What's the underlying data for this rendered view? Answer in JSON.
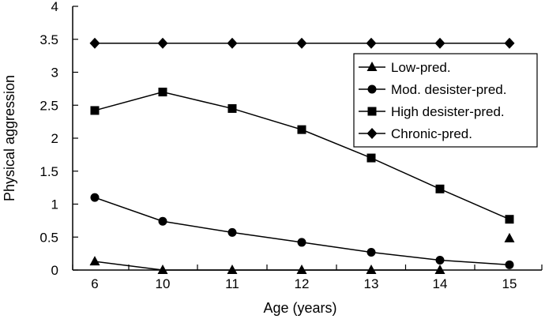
{
  "chart_data": {
    "type": "line",
    "title": "",
    "xlabel": "Age (years)",
    "ylabel": "Physical aggression",
    "categories": [
      "6",
      "10",
      "11",
      "12",
      "13",
      "14",
      "15"
    ],
    "yticks": [
      "0",
      "0.5",
      "1",
      "1.5",
      "2",
      "2.5",
      "3",
      "3.5",
      "4"
    ],
    "ylim": [
      0,
      4
    ],
    "grid": false,
    "legend_position": "right",
    "series": [
      {
        "name": "Low-pred.",
        "marker": "triangle",
        "values": [
          0.13,
          0.0,
          0.0,
          0.0,
          0.0,
          0.0,
          0.48
        ],
        "connected": [
          true,
          true,
          true,
          true,
          true,
          true,
          false
        ]
      },
      {
        "name": "Mod. desister-pred.",
        "marker": "circle",
        "values": [
          1.1,
          0.74,
          0.57,
          0.42,
          0.27,
          0.15,
          0.08
        ]
      },
      {
        "name": "High desister-pred.",
        "marker": "square",
        "values": [
          2.42,
          2.7,
          2.45,
          2.13,
          1.7,
          1.23,
          0.77
        ]
      },
      {
        "name": "Chronic-pred.",
        "marker": "diamond",
        "values": [
          3.44,
          3.44,
          3.44,
          3.44,
          3.44,
          3.44,
          3.44
        ]
      }
    ]
  }
}
